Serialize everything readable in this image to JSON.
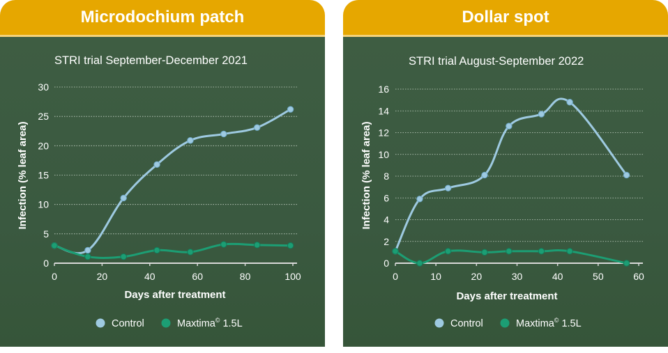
{
  "colors": {
    "banner": "#e6a700",
    "control": "#9ecae1",
    "maxtima": "#1c9e74"
  },
  "chart_data": [
    {
      "type": "line",
      "title": "Microdochium patch",
      "subtitle": "STRI trial September-December 2021",
      "xlabel": "Days after treatment",
      "ylabel": "Infection (% leaf area)",
      "xlim": [
        0,
        100
      ],
      "ylim": [
        0,
        30
      ],
      "xticks": [
        "0",
        "20",
        "40",
        "60",
        "80",
        "100"
      ],
      "yticks": [
        "0",
        "5",
        "10",
        "15",
        "20",
        "25",
        "30"
      ],
      "legend": {
        "control": "Control",
        "maxtima": "Maxtima",
        "maxtima_sup": "©",
        "maxtima_suffix": " 1.5L"
      },
      "series": [
        {
          "name": "Control",
          "x": [
            0,
            14,
            29,
            43,
            57,
            71,
            85,
            99
          ],
          "y": [
            3.0,
            2.2,
            11.1,
            16.8,
            20.9,
            22.0,
            23.1,
            26.2
          ]
        },
        {
          "name": "Maxtima 1.5L",
          "x": [
            0,
            14,
            29,
            43,
            57,
            71,
            85,
            99
          ],
          "y": [
            3.0,
            1.1,
            1.1,
            2.2,
            1.9,
            3.2,
            3.1,
            3.0
          ]
        }
      ]
    },
    {
      "type": "line",
      "title": "Dollar spot",
      "subtitle": "STRI trial August-September 2022",
      "xlabel": "Days after treatment",
      "ylabel": "Infection (% leaf area)",
      "xlim": [
        0,
        60
      ],
      "ylim": [
        0,
        16
      ],
      "xticks": [
        "0",
        "10",
        "20",
        "30",
        "40",
        "50",
        "60"
      ],
      "yticks": [
        "0",
        "2",
        "4",
        "6",
        "8",
        "10",
        "12",
        "14",
        "16"
      ],
      "legend": {
        "control": "Control",
        "maxtima": "Maxtima",
        "maxtima_sup": "©",
        "maxtima_suffix": " 1.5L"
      },
      "series": [
        {
          "name": "Control",
          "x": [
            0,
            6,
            13,
            22,
            28,
            36,
            43,
            57
          ],
          "y": [
            1.1,
            5.9,
            6.9,
            8.1,
            12.6,
            13.7,
            14.8,
            8.1
          ]
        },
        {
          "name": "Maxtima 1.5L",
          "x": [
            0,
            6,
            13,
            22,
            28,
            36,
            43,
            57
          ],
          "y": [
            1.1,
            0.0,
            1.1,
            1.0,
            1.1,
            1.1,
            1.1,
            0.0
          ]
        }
      ]
    }
  ]
}
